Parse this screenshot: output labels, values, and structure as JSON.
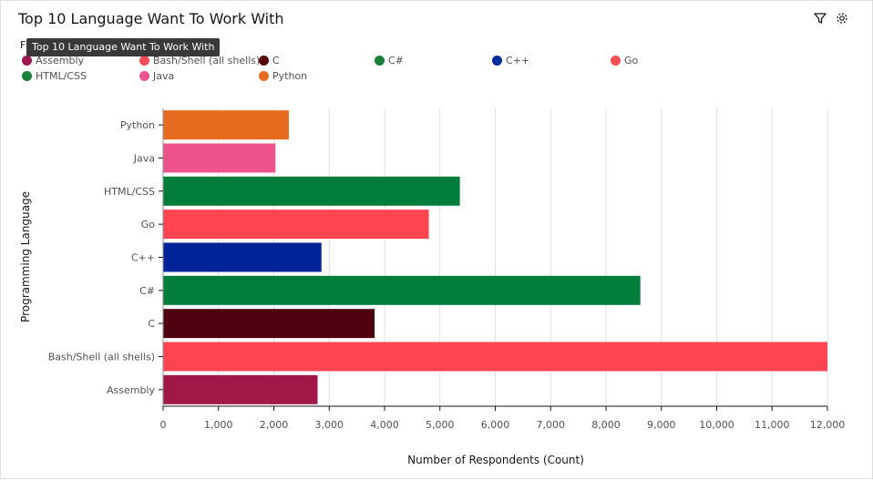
{
  "header": {
    "title": "Top 10 Language Want To Work With",
    "filter_icon": "filter-icon",
    "settings_icon": "gear-icon"
  },
  "tooltip": {
    "text": "Top 10 Language Want To Work With"
  },
  "legend": [
    {
      "label": "Assembly",
      "color": "#9f1853"
    },
    {
      "label": "Bash/Shell (all shells)",
      "color": "#fa4d56"
    },
    {
      "label": "C",
      "color": "#570408"
    },
    {
      "label": "C#",
      "color": "#198038"
    },
    {
      "label": "C++",
      "color": "#002d9c"
    },
    {
      "label": "Go",
      "color": "#fa4d56"
    },
    {
      "label": "HTML/CSS",
      "color": "#198038"
    },
    {
      "label": "Java",
      "color": "#ee538b"
    },
    {
      "label": "Python",
      "color": "#e66b1e"
    }
  ],
  "chart_data": {
    "type": "bar",
    "orientation": "horizontal",
    "xlabel": "Number of Respondents (Count)",
    "ylabel": "Programming Language",
    "xlim": [
      0,
      12000
    ],
    "xticks": [
      0,
      1000,
      2000,
      3000,
      4000,
      5000,
      6000,
      7000,
      8000,
      9000,
      10000,
      11000,
      12000
    ],
    "xtick_labels": [
      "0",
      "1,000",
      "2,000",
      "3,000",
      "4,000",
      "5,000",
      "6,000",
      "7,000",
      "8,000",
      "9,000",
      "10,000",
      "11,000",
      "12,000"
    ],
    "grid": true,
    "legend_position": "top-left",
    "categories": [
      "Python",
      "Java",
      "HTML/CSS",
      "Go",
      "C++",
      "C#",
      "C",
      "Bash/Shell (all shells)",
      "Assembly"
    ],
    "values": [
      2270,
      2030,
      5360,
      4800,
      2860,
      8620,
      3820,
      12000,
      2790
    ],
    "colors": [
      "#e66b1e",
      "#ee538b",
      "#007d3a",
      "#ff4451",
      "#012398",
      "#007d3a",
      "#4f0311",
      "#ff4451",
      "#9f1847"
    ]
  }
}
